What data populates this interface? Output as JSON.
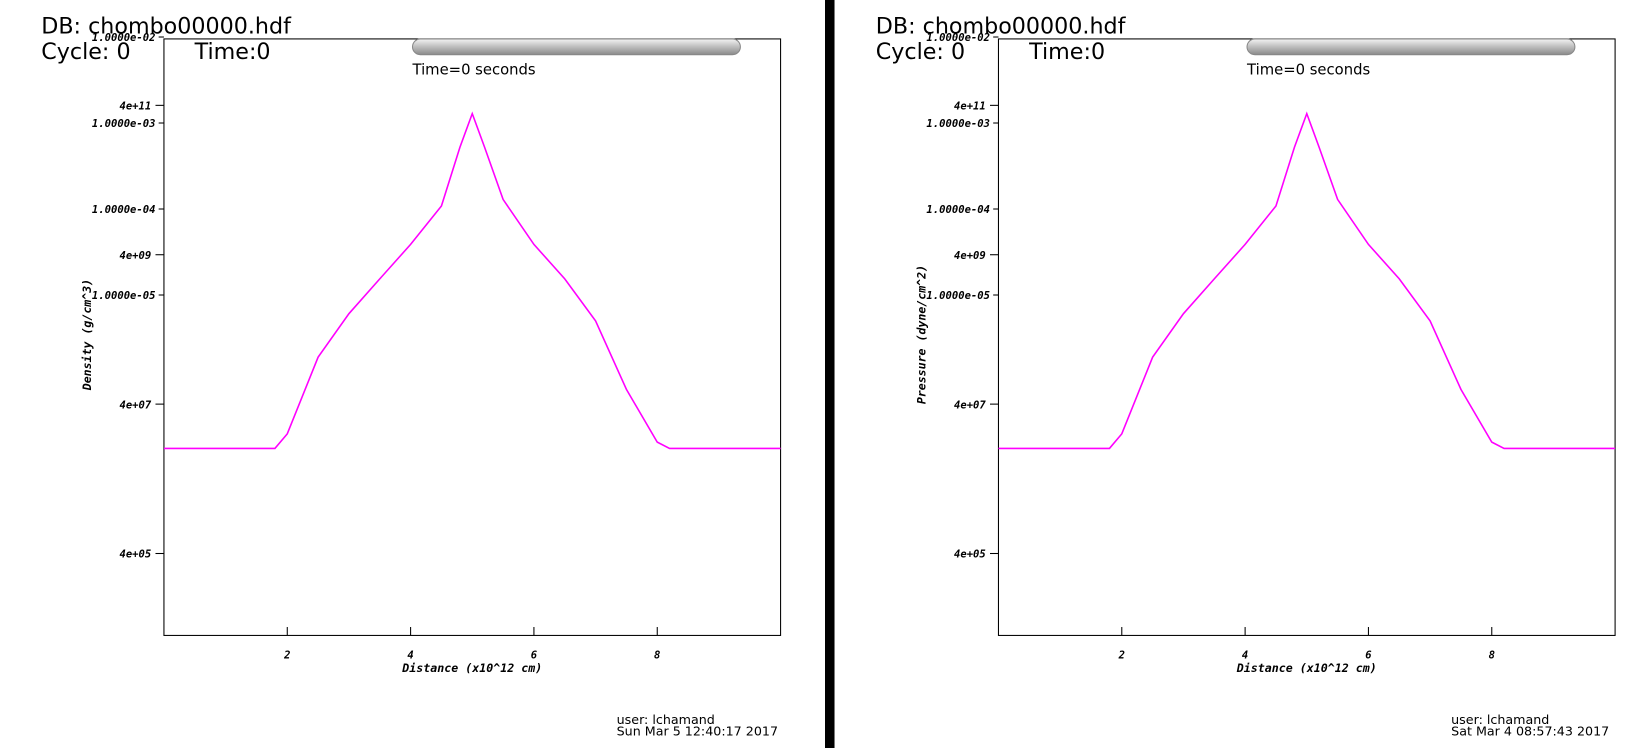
{
  "chart_data": [
    {
      "type": "line",
      "db_label": "DB: chombo00000.hdf",
      "cycle_label": "Cycle: 0",
      "time_label": "Time:0",
      "time_text": "Time=0 seconds",
      "user": "user: lchamand",
      "date": "Sun Mar  5 12:40:17 2017",
      "x_label": "Distance (x10^12 cm)",
      "y_label": "Density (g/cm^3)",
      "x": [
        0,
        1,
        1.8,
        2,
        2.5,
        3,
        3.5,
        4,
        4.5,
        4.8,
        5,
        5.2,
        5.5,
        6,
        6.5,
        7,
        7.5,
        8,
        8.2,
        9,
        10
      ],
      "series": [
        {
          "name": "Density",
          "color": "#ff00ff",
          "values": [
            10200000.0,
            10200000.0,
            10200000.0,
            16000000.0,
            170000000.0,
            650000000.0,
            1900000000.0,
            5500000000.0,
            18000000000.0,
            110000000000.0,
            310000000000.0,
            110000000000.0,
            22000000000.0,
            5500000000.0,
            1900000000.0,
            520000000.0,
            63000000.0,
            12400000.0,
            10200000.0,
            10200000.0,
            10200000.0
          ]
        }
      ],
      "xlim": [
        0,
        10
      ],
      "xticks": [
        2,
        4,
        6,
        8
      ],
      "ylog": true,
      "ylim": [
        32000.0,
        3100000000000.0
      ],
      "yticks": [
        {
          "value": 400000000000.0,
          "label": "4e+11"
        },
        {
          "value": 4000000000.0,
          "label": "4e+09"
        },
        {
          "value": 40000000.0,
          "label": "4e+07"
        },
        {
          "value": 400000.0,
          "label": "4e+05"
        }
      ],
      "y2lim": [
        1.1e-09,
        0.0095
      ],
      "y2ticks": [
        {
          "value": 0.01,
          "label": "1.0000e-02"
        },
        {
          "value": 0.001,
          "label": "1.0000e-03"
        },
        {
          "value": 0.0001,
          "label": "1.0000e-04"
        },
        {
          "value": 1e-05,
          "label": "1.0000e-05"
        }
      ]
    },
    {
      "type": "line",
      "db_label": "DB: chombo00000.hdf",
      "cycle_label": "Cycle: 0",
      "time_label": "Time:0",
      "time_text": "Time=0 seconds",
      "user": "user: lchamand",
      "date": "Sat Mar  4 08:57:43 2017",
      "x_label": "Distance (x10^12 cm)",
      "y_label": "Pressure (dyne/cm^2)",
      "x": [
        0,
        1,
        1.8,
        2,
        2.5,
        3,
        3.5,
        4,
        4.5,
        4.8,
        5,
        5.2,
        5.5,
        6,
        6.5,
        7,
        7.5,
        8,
        8.2,
        9,
        10
      ],
      "series": [
        {
          "name": "Pressure",
          "color": "#ff00ff",
          "values": [
            10200000.0,
            10200000.0,
            10200000.0,
            16000000.0,
            170000000.0,
            650000000.0,
            1900000000.0,
            5500000000.0,
            18000000000.0,
            110000000000.0,
            310000000000.0,
            110000000000.0,
            22000000000.0,
            5500000000.0,
            1900000000.0,
            520000000.0,
            63000000.0,
            12400000.0,
            10200000.0,
            10200000.0,
            10200000.0
          ]
        }
      ],
      "xlim": [
        0,
        10
      ],
      "xticks": [
        2,
        4,
        6,
        8
      ],
      "ylog": true,
      "ylim": [
        32000.0,
        3100000000000.0
      ],
      "yticks": [
        {
          "value": 400000000000.0,
          "label": "4e+11"
        },
        {
          "value": 4000000000.0,
          "label": "4e+09"
        },
        {
          "value": 40000000.0,
          "label": "4e+07"
        },
        {
          "value": 400000.0,
          "label": "4e+05"
        }
      ],
      "y2lim": [
        1.1e-09,
        0.0095
      ],
      "y2ticks": [
        {
          "value": 0.01,
          "label": "1.0000e-02"
        },
        {
          "value": 0.001,
          "label": "1.0000e-03"
        },
        {
          "value": 0.0001,
          "label": "1.0000e-04"
        },
        {
          "value": 1e-05,
          "label": "1.0000e-05"
        }
      ]
    }
  ]
}
